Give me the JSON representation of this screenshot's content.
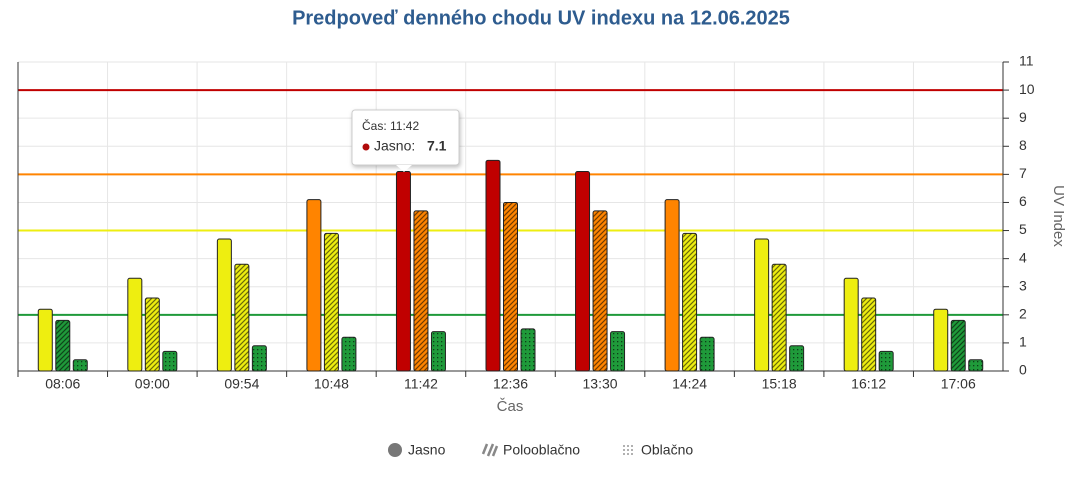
{
  "chart_data": {
    "type": "bar",
    "title": "Predpoveď denného chodu UV indexu na 12.06.2025",
    "x_label": "Čas",
    "y_label": "UV Index",
    "categories": [
      "08:06",
      "09:00",
      "09:54",
      "10:48",
      "11:42",
      "12:36",
      "13:30",
      "14:24",
      "15:18",
      "16:12",
      "17:06"
    ],
    "series": [
      {
        "name": "Jasno",
        "pattern": "solid",
        "values": [
          2.2,
          3.3,
          4.7,
          6.1,
          7.1,
          7.5,
          7.1,
          6.1,
          4.7,
          3.3,
          2.2
        ]
      },
      {
        "name": "Polooblačno",
        "pattern": "hatch",
        "values": [
          1.8,
          2.6,
          3.8,
          4.9,
          5.7,
          6.0,
          5.7,
          4.9,
          3.8,
          2.6,
          1.8
        ]
      },
      {
        "name": "Oblačno",
        "pattern": "dots",
        "values": [
          0.4,
          0.7,
          0.9,
          1.2,
          1.4,
          1.5,
          1.4,
          1.2,
          0.9,
          0.7,
          0.4
        ]
      }
    ],
    "reference_lines": [
      {
        "value": 2,
        "color": "#1f9a3a"
      },
      {
        "value": 5,
        "color": "#eeee10"
      },
      {
        "value": 7,
        "color": "#ff8400"
      },
      {
        "value": 10,
        "color": "#c00000"
      }
    ],
    "ylim": [
      0,
      11
    ],
    "yticks": [
      0,
      1,
      2,
      3,
      4,
      5,
      6,
      7,
      8,
      9,
      10,
      11
    ],
    "y_axis_side": "right",
    "grid": true,
    "legend_position": "bottom",
    "tooltip": {
      "title": "Čas: 11:42",
      "label": "Jasno:",
      "value": 7.1,
      "color": "#b00a0a"
    }
  }
}
